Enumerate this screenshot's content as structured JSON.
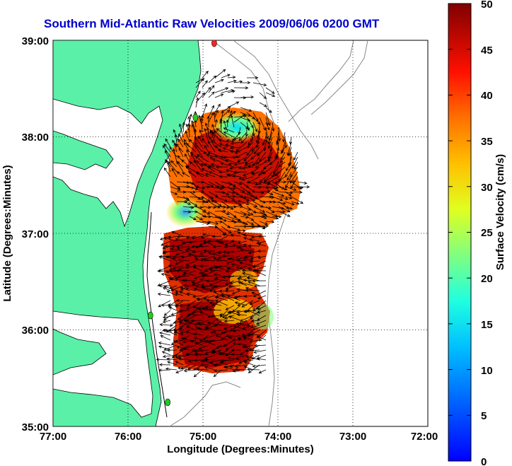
{
  "title": "Southern Mid-Atlantic Raw Velocities 2009/06/06 0200 GMT",
  "axes": {
    "xlabel": "Longitude (Degrees:Minutes)",
    "ylabel": "Latitude (Degrees:Minutes)",
    "x_ticks": [
      "77:00",
      "76:00",
      "75:00",
      "74:00",
      "73:00",
      "72:00"
    ],
    "y_ticks": [
      "39:00",
      "38:00",
      "37:00",
      "36:00",
      "35:00"
    ],
    "x_range_deg_west": [
      77,
      72
    ],
    "y_range_deg_north": [
      35,
      39
    ],
    "grid": "dotted"
  },
  "colorbar": {
    "label": "Surface Velocity (cm/s)",
    "ticks": [
      "50",
      "45",
      "40",
      "35",
      "30",
      "25",
      "20",
      "15",
      "10",
      "5",
      "0"
    ],
    "range": [
      0,
      50
    ],
    "colormap": "jet"
  },
  "colors": {
    "land": "#5af0a8",
    "ocean": "#ffffff",
    "title": "#0000cc",
    "bathymetry": "#888888",
    "station_active": "#22cc22",
    "station_inactive": "#ff2222"
  },
  "stations": [
    {
      "status": "active",
      "lon": -75.1,
      "lat": 38.2
    },
    {
      "status": "inactive",
      "lon": -74.85,
      "lat": 38.97
    },
    {
      "status": "active",
      "lon": -75.7,
      "lat": 36.15
    },
    {
      "status": "active",
      "lon": -75.47,
      "lat": 35.25
    }
  ]
}
